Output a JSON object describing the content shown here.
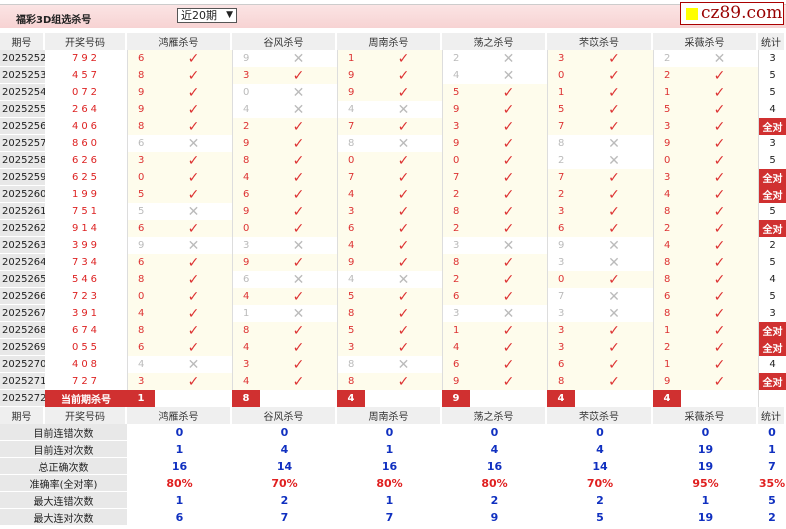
{
  "header": {
    "title": "福彩3D组选杀号",
    "period_select": "近20期",
    "logo": "cz89.com"
  },
  "columns": [
    "期号",
    "开奖号码",
    "鸿雁杀号",
    "谷风杀号",
    "周南杀号",
    "荡之杀号",
    "芣苡杀号",
    "采薇杀号",
    "统计"
  ],
  "colors": {
    "accent": "#d03030",
    "check": "#d33333",
    "cross": "#bbbbbb",
    "stat_blue": "#1030c0",
    "hit_bg": "#fefcec"
  },
  "rows": [
    {
      "period": "2025252",
      "draw": "792",
      "kills": [
        [
          "6",
          1
        ],
        [
          "9",
          0
        ],
        [
          "1",
          1
        ],
        [
          "2",
          0
        ],
        [
          "3",
          1
        ],
        [
          "2",
          0
        ]
      ],
      "stat": "3"
    },
    {
      "period": "2025253",
      "draw": "457",
      "kills": [
        [
          "8",
          1
        ],
        [
          "3",
          1
        ],
        [
          "9",
          1
        ],
        [
          "4",
          0
        ],
        [
          "0",
          1
        ],
        [
          "2",
          1
        ]
      ],
      "stat": "5"
    },
    {
      "period": "2025254",
      "draw": "072",
      "kills": [
        [
          "9",
          1
        ],
        [
          "0",
          0
        ],
        [
          "9",
          1
        ],
        [
          "5",
          1
        ],
        [
          "1",
          1
        ],
        [
          "1",
          1
        ]
      ],
      "stat": "5"
    },
    {
      "period": "2025255",
      "draw": "264",
      "kills": [
        [
          "9",
          1
        ],
        [
          "4",
          0
        ],
        [
          "4",
          0
        ],
        [
          "9",
          1
        ],
        [
          "5",
          1
        ],
        [
          "5",
          1
        ]
      ],
      "stat": "4"
    },
    {
      "period": "2025256",
      "draw": "406",
      "kills": [
        [
          "8",
          1
        ],
        [
          "2",
          1
        ],
        [
          "7",
          1
        ],
        [
          "3",
          1
        ],
        [
          "7",
          1
        ],
        [
          "3",
          1
        ]
      ],
      "stat": "全对"
    },
    {
      "period": "2025257",
      "draw": "860",
      "kills": [
        [
          "6",
          0
        ],
        [
          "9",
          1
        ],
        [
          "8",
          0
        ],
        [
          "9",
          1
        ],
        [
          "8",
          0
        ],
        [
          "9",
          1
        ]
      ],
      "stat": "3"
    },
    {
      "period": "2025258",
      "draw": "626",
      "kills": [
        [
          "3",
          1
        ],
        [
          "8",
          1
        ],
        [
          "0",
          1
        ],
        [
          "0",
          1
        ],
        [
          "2",
          0
        ],
        [
          "0",
          1
        ]
      ],
      "stat": "5"
    },
    {
      "period": "2025259",
      "draw": "625",
      "kills": [
        [
          "0",
          1
        ],
        [
          "4",
          1
        ],
        [
          "7",
          1
        ],
        [
          "7",
          1
        ],
        [
          "7",
          1
        ],
        [
          "3",
          1
        ]
      ],
      "stat": "全对"
    },
    {
      "period": "2025260",
      "draw": "199",
      "kills": [
        [
          "5",
          1
        ],
        [
          "6",
          1
        ],
        [
          "4",
          1
        ],
        [
          "2",
          1
        ],
        [
          "2",
          1
        ],
        [
          "4",
          1
        ]
      ],
      "stat": "全对"
    },
    {
      "period": "2025261",
      "draw": "751",
      "kills": [
        [
          "5",
          0
        ],
        [
          "9",
          1
        ],
        [
          "3",
          1
        ],
        [
          "8",
          1
        ],
        [
          "3",
          1
        ],
        [
          "8",
          1
        ]
      ],
      "stat": "5"
    },
    {
      "period": "2025262",
      "draw": "914",
      "kills": [
        [
          "6",
          1
        ],
        [
          "0",
          1
        ],
        [
          "6",
          1
        ],
        [
          "2",
          1
        ],
        [
          "6",
          1
        ],
        [
          "2",
          1
        ]
      ],
      "stat": "全对"
    },
    {
      "period": "2025263",
      "draw": "399",
      "kills": [
        [
          "9",
          0
        ],
        [
          "3",
          0
        ],
        [
          "4",
          1
        ],
        [
          "3",
          0
        ],
        [
          "9",
          0
        ],
        [
          "4",
          1
        ]
      ],
      "stat": "2"
    },
    {
      "period": "2025264",
      "draw": "734",
      "kills": [
        [
          "6",
          1
        ],
        [
          "9",
          1
        ],
        [
          "9",
          1
        ],
        [
          "8",
          1
        ],
        [
          "3",
          0
        ],
        [
          "8",
          1
        ]
      ],
      "stat": "5"
    },
    {
      "period": "2025265",
      "draw": "546",
      "kills": [
        [
          "8",
          1
        ],
        [
          "6",
          0
        ],
        [
          "4",
          0
        ],
        [
          "2",
          1
        ],
        [
          "0",
          1
        ],
        [
          "8",
          1
        ]
      ],
      "stat": "4"
    },
    {
      "period": "2025266",
      "draw": "723",
      "kills": [
        [
          "0",
          1
        ],
        [
          "4",
          1
        ],
        [
          "5",
          1
        ],
        [
          "6",
          1
        ],
        [
          "7",
          0
        ],
        [
          "6",
          1
        ]
      ],
      "stat": "5"
    },
    {
      "period": "2025267",
      "draw": "391",
      "kills": [
        [
          "4",
          1
        ],
        [
          "1",
          0
        ],
        [
          "8",
          1
        ],
        [
          "3",
          0
        ],
        [
          "3",
          0
        ],
        [
          "8",
          1
        ]
      ],
      "stat": "3"
    },
    {
      "period": "2025268",
      "draw": "674",
      "kills": [
        [
          "8",
          1
        ],
        [
          "8",
          1
        ],
        [
          "5",
          1
        ],
        [
          "1",
          1
        ],
        [
          "3",
          1
        ],
        [
          "1",
          1
        ]
      ],
      "stat": "全对"
    },
    {
      "period": "2025269",
      "draw": "055",
      "kills": [
        [
          "6",
          1
        ],
        [
          "4",
          1
        ],
        [
          "3",
          1
        ],
        [
          "4",
          1
        ],
        [
          "3",
          1
        ],
        [
          "2",
          1
        ]
      ],
      "stat": "全对"
    },
    {
      "period": "2025270",
      "draw": "408",
      "kills": [
        [
          "4",
          0
        ],
        [
          "3",
          1
        ],
        [
          "8",
          0
        ],
        [
          "6",
          1
        ],
        [
          "6",
          1
        ],
        [
          "1",
          1
        ]
      ],
      "stat": "4"
    },
    {
      "period": "2025271",
      "draw": "727",
      "kills": [
        [
          "3",
          1
        ],
        [
          "4",
          1
        ],
        [
          "8",
          1
        ],
        [
          "9",
          1
        ],
        [
          "8",
          1
        ],
        [
          "9",
          1
        ]
      ],
      "stat": "全对"
    }
  ],
  "current": {
    "period": "2025272",
    "label": "当前期杀号",
    "kills": [
      "1",
      "8",
      "4",
      "9",
      "4",
      "4"
    ]
  },
  "stats": [
    {
      "label": "目前连错次数",
      "values": [
        "0",
        "0",
        "0",
        "0",
        "0",
        "0",
        "0"
      ]
    },
    {
      "label": "目前连对次数",
      "values": [
        "1",
        "4",
        "1",
        "4",
        "4",
        "19",
        "1"
      ]
    },
    {
      "label": "总正确次数",
      "values": [
        "16",
        "14",
        "16",
        "16",
        "14",
        "19",
        "7"
      ]
    },
    {
      "label": "准确率(全对率)",
      "values": [
        "80%",
        "70%",
        "80%",
        "80%",
        "70%",
        "95%",
        "35%"
      ]
    },
    {
      "label": "最大连错次数",
      "values": [
        "1",
        "2",
        "1",
        "2",
        "2",
        "1",
        "5"
      ]
    },
    {
      "label": "最大连对次数",
      "values": [
        "6",
        "7",
        "7",
        "9",
        "5",
        "19",
        "2"
      ]
    }
  ]
}
